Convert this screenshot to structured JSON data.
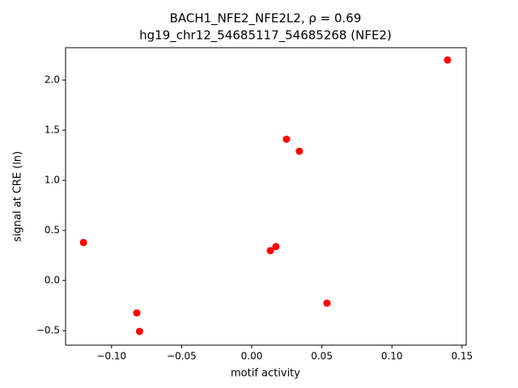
{
  "chart_data": {
    "type": "scatter",
    "title": "BACH1_NFE2_NFE2L2, ρ = 0.69",
    "subtitle": "hg19_chr12_54685117_54685268 (NFE2)",
    "x_label": "motif activity",
    "y_label": "signal at CRE (ln)",
    "color": "#ff0000",
    "x": [
      0.1397,
      0.0248,
      0.034,
      -0.12,
      0.0173,
      0.0133,
      0.0537,
      -0.082,
      -0.08
    ],
    "values": [
      2.2,
      1.41,
      1.29,
      0.379,
      0.339,
      0.298,
      -0.226,
      -0.323,
      -0.508
    ],
    "xlim": [
      -0.1328,
      0.153
    ],
    "ylim": [
      -0.645,
      2.323
    ],
    "xticks": [
      {
        "value": -0.1,
        "label": "−0.10"
      },
      {
        "value": -0.05,
        "label": "−0.05"
      },
      {
        "value": 0,
        "label": "0.00"
      },
      0.05,
      {
        "value": 0.1,
        "label": "0.10"
      },
      0.15
    ],
    "yticks": [
      {
        "value": -0.5,
        "label": "−0.5"
      },
      {
        "value": 0,
        "label": "0.0"
      },
      0.5,
      {
        "value": 1,
        "label": "1.0"
      },
      1.5,
      {
        "value": 2,
        "label": "2.0"
      }
    ],
    "grid": false
  }
}
